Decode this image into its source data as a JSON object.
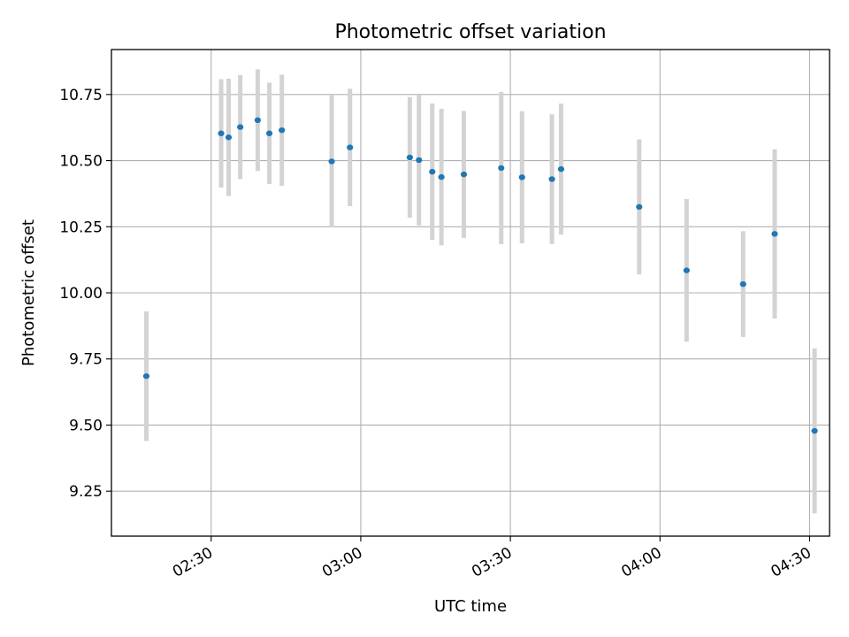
{
  "chart_data": {
    "type": "scatter",
    "title": "Photometric offset variation",
    "xlabel": "UTC time",
    "ylabel": "Photometric offset",
    "xlim": [
      "02:10",
      "04:34"
    ],
    "ylim": [
      9.08,
      10.92
    ],
    "x_ticks": [
      "02:30",
      "03:00",
      "03:30",
      "04:00",
      "04:30"
    ],
    "y_ticks": [
      9.25,
      9.5,
      9.75,
      10.0,
      10.25,
      10.5,
      10.75
    ],
    "grid": true,
    "colors": {
      "point": "#1f77b4",
      "errorbar": "#d3d3d3",
      "grid": "#b0b0b0"
    },
    "points": [
      {
        "x": "02:17:00",
        "y": 9.685,
        "yerr": 0.245
      },
      {
        "x": "02:32:00",
        "y": 10.603,
        "yerr": 0.205
      },
      {
        "x": "02:33:30",
        "y": 10.588,
        "yerr": 0.222
      },
      {
        "x": "02:35:50",
        "y": 10.627,
        "yerr": 0.197
      },
      {
        "x": "02:39:20",
        "y": 10.653,
        "yerr": 0.192
      },
      {
        "x": "02:41:40",
        "y": 10.603,
        "yerr": 0.192
      },
      {
        "x": "02:44:10",
        "y": 10.615,
        "yerr": 0.21
      },
      {
        "x": "02:54:10",
        "y": 10.497,
        "yerr": 0.25
      },
      {
        "x": "02:57:50",
        "y": 10.55,
        "yerr": 0.222
      },
      {
        "x": "03:09:50",
        "y": 10.512,
        "yerr": 0.228
      },
      {
        "x": "03:11:40",
        "y": 10.502,
        "yerr": 0.247
      },
      {
        "x": "03:14:20",
        "y": 10.458,
        "yerr": 0.258
      },
      {
        "x": "03:16:10",
        "y": 10.438,
        "yerr": 0.258
      },
      {
        "x": "03:20:40",
        "y": 10.448,
        "yerr": 0.24
      },
      {
        "x": "03:28:10",
        "y": 10.472,
        "yerr": 0.288
      },
      {
        "x": "03:32:20",
        "y": 10.437,
        "yerr": 0.25
      },
      {
        "x": "03:38:20",
        "y": 10.43,
        "yerr": 0.245
      },
      {
        "x": "03:40:10",
        "y": 10.468,
        "yerr": 0.248
      },
      {
        "x": "03:55:50",
        "y": 10.325,
        "yerr": 0.255
      },
      {
        "x": "04:05:20",
        "y": 10.085,
        "yerr": 0.27
      },
      {
        "x": "04:16:40",
        "y": 10.033,
        "yerr": 0.2
      },
      {
        "x": "04:23:00",
        "y": 10.223,
        "yerr": 0.32
      },
      {
        "x": "04:31:00",
        "y": 9.478,
        "yerr": 0.312
      }
    ]
  }
}
